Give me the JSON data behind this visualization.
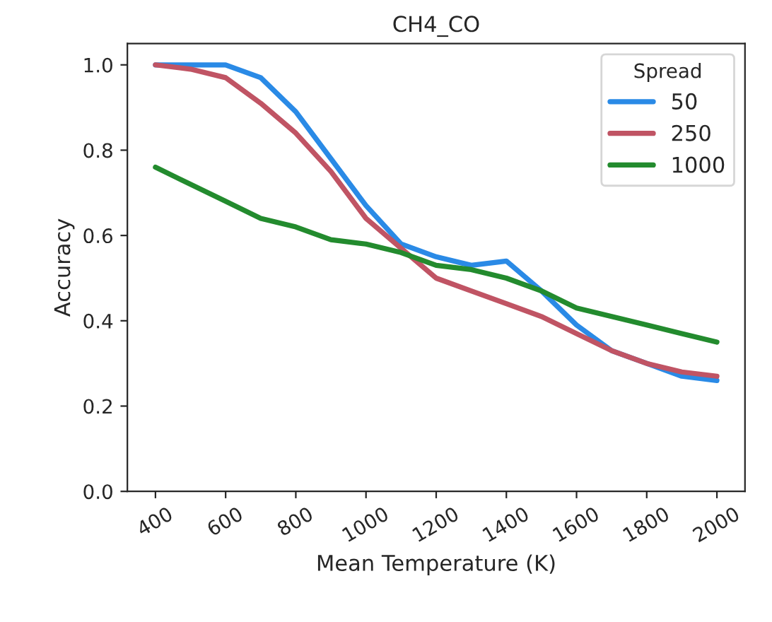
{
  "chart_data": {
    "type": "line",
    "title": "CH4_CO",
    "xlabel": "Mean Temperature (K)",
    "ylabel": "Accuracy",
    "legend_title": "Spread",
    "x": [
      400,
      500,
      600,
      700,
      800,
      900,
      1000,
      1100,
      1200,
      1300,
      1400,
      1500,
      1600,
      1700,
      1800,
      1900,
      2000
    ],
    "series": [
      {
        "name": "50",
        "color": "#2a8ae6",
        "values": [
          1.0,
          1.0,
          1.0,
          0.97,
          0.89,
          0.78,
          0.67,
          0.58,
          0.55,
          0.53,
          0.54,
          0.47,
          0.39,
          0.33,
          0.3,
          0.27,
          0.26
        ]
      },
      {
        "name": "250",
        "color": "#c05464",
        "values": [
          1.0,
          0.99,
          0.97,
          0.91,
          0.84,
          0.75,
          0.64,
          0.57,
          0.5,
          0.47,
          0.44,
          0.41,
          0.37,
          0.33,
          0.3,
          0.28,
          0.27
        ]
      },
      {
        "name": "1000",
        "color": "#238b2e",
        "values": [
          0.76,
          0.72,
          0.68,
          0.64,
          0.62,
          0.59,
          0.58,
          0.56,
          0.53,
          0.52,
          0.5,
          0.47,
          0.43,
          0.41,
          0.39,
          0.37,
          0.35
        ]
      }
    ],
    "xlim": [
      320,
      2080
    ],
    "xticks": [
      400,
      600,
      800,
      1000,
      1200,
      1400,
      1600,
      1800,
      2000
    ],
    "ylim": [
      0.0,
      1.05
    ],
    "yticks": [
      {
        "value": 0.0,
        "label": "0.0"
      },
      {
        "value": 0.2,
        "label": "0.2"
      },
      {
        "value": 0.4,
        "label": "0.4"
      },
      {
        "value": 0.6,
        "label": "0.6"
      },
      {
        "value": 0.8,
        "label": "0.8"
      },
      {
        "value": 1.0,
        "label": "1.0"
      }
    ],
    "legend": "top right",
    "grid": false,
    "line_style": "solid"
  }
}
